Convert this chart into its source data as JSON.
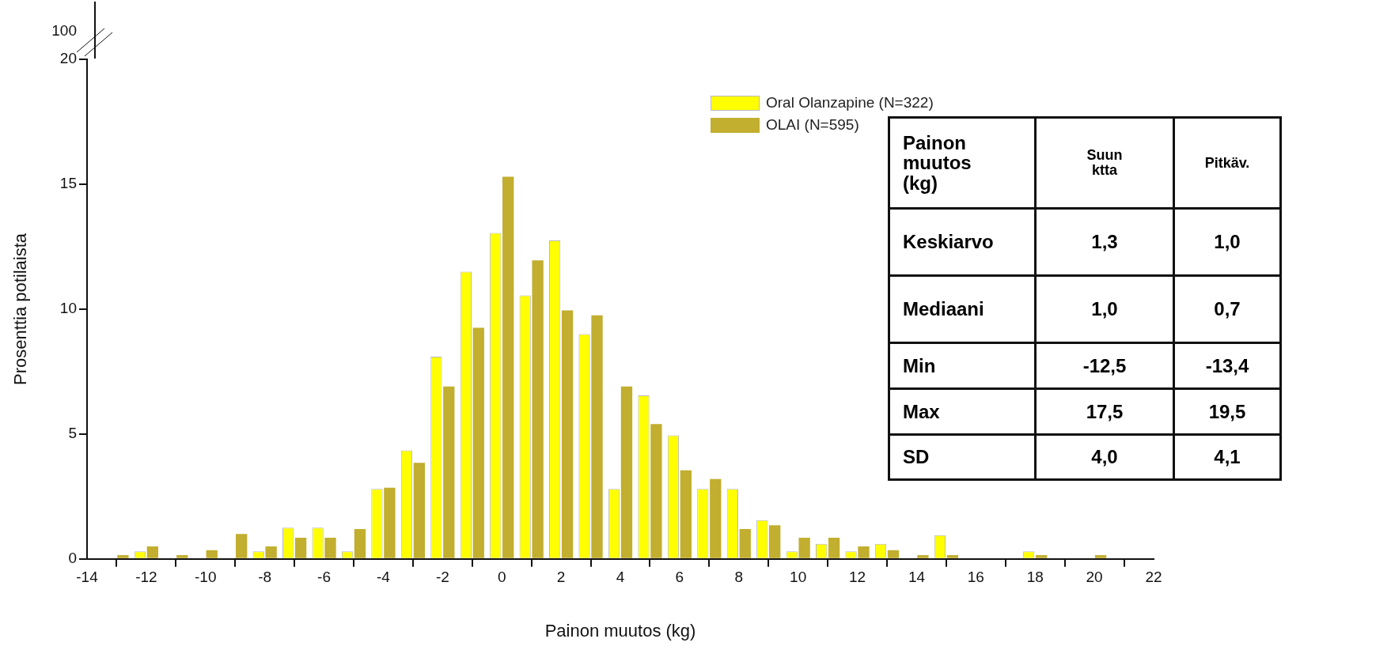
{
  "chart_data": {
    "type": "bar",
    "xlabel": "Painon muutos (kg)",
    "ylabel": "Prosenttia potilaista",
    "x": [
      -13,
      -12,
      -11,
      -10,
      -9,
      -8,
      -7,
      -6,
      -5,
      -4,
      -3,
      -2,
      -1,
      0,
      1,
      2,
      3,
      4,
      5,
      6,
      7,
      8,
      9,
      10,
      11,
      12,
      13,
      14,
      15,
      16,
      17,
      18,
      19,
      20
    ],
    "series": [
      {
        "name": "Oral Olanzapine (N=322)",
        "color": "#ffff00",
        "values": [
          0,
          0.3,
          0,
          0,
          0,
          0.3,
          1.25,
          1.25,
          0.3,
          2.8,
          4.35,
          8.1,
          11.5,
          13.05,
          10.55,
          12.75,
          9.0,
          2.8,
          6.55,
          4.95,
          2.8,
          2.8,
          1.55,
          0.3,
          0.6,
          0.3,
          0.6,
          0,
          0.95,
          0,
          0,
          0.3,
          0,
          0
        ]
      },
      {
        "name": "OLAI (N=595)",
        "color": "#c2ae2f",
        "values": [
          0.15,
          0.5,
          0.15,
          0.35,
          1.0,
          0.5,
          0.85,
          0.85,
          1.2,
          2.85,
          3.85,
          6.9,
          9.25,
          15.3,
          11.95,
          9.95,
          9.75,
          6.9,
          5.4,
          3.55,
          3.2,
          1.2,
          1.35,
          0.85,
          0.85,
          0.5,
          0.35,
          0.15,
          0.15,
          0,
          0,
          0.15,
          0,
          0.15
        ]
      }
    ],
    "xlim": [
      -14,
      22
    ],
    "xticks": [
      -14,
      -12,
      -10,
      -8,
      -6,
      -4,
      -2,
      0,
      2,
      4,
      6,
      8,
      10,
      12,
      14,
      16,
      18,
      20,
      22
    ],
    "ylim": [
      0,
      20
    ],
    "yticks": [
      0,
      5,
      10,
      15,
      20
    ],
    "legend": "top right",
    "grid": false,
    "annotations": [
      "100",
      "Painon\nmuutos\n(kg)",
      "Suun\nktta",
      "Pitkäv.",
      "Keskiarvo",
      "1,3",
      "1,0",
      "Mediaani",
      "1,0",
      "0,7",
      "Min",
      "-12,5",
      "-13,4",
      "Max",
      "17,5",
      "19,5",
      "SD",
      "4,0",
      "4,1"
    ]
  }
}
